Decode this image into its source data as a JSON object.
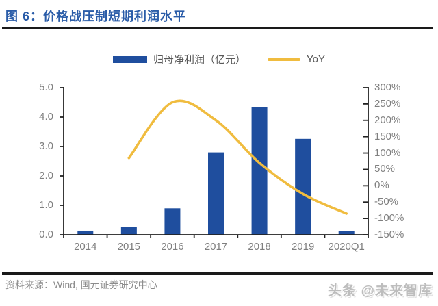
{
  "header": {
    "title": "图 6：价格战压制短期利润水平"
  },
  "legend": {
    "bar_label": "归母净利润（亿元）",
    "line_label": "YoY"
  },
  "chart_data": {
    "type": "bar+line",
    "title": "图 6：价格战压制短期利润水平",
    "categories": [
      "2014",
      "2015",
      "2016",
      "2017",
      "2018",
      "2019",
      "2020Q1"
    ],
    "series": [
      {
        "name": "归母净利润（亿元）",
        "type": "bar",
        "axis": "left",
        "values": [
          0.14,
          0.27,
          0.9,
          2.8,
          4.33,
          3.26,
          0.12
        ]
      },
      {
        "name": "YoY",
        "type": "line",
        "axis": "right",
        "values": [
          null,
          85,
          255,
          200,
          70,
          -25,
          -85
        ]
      }
    ],
    "left_axis": {
      "min": 0,
      "max": 5,
      "step": 1,
      "tick_labels": [
        "0.0",
        "1.0",
        "2.0",
        "3.0",
        "4.0",
        "5.0"
      ]
    },
    "right_axis": {
      "min": -150,
      "max": 300,
      "step": 50,
      "tick_labels": [
        "300%",
        "250%",
        "200%",
        "150%",
        "100%",
        "50%",
        "0%",
        "-50%",
        "-100%",
        "-150%"
      ]
    },
    "legend_position": "top",
    "grid": false
  },
  "footer": {
    "source": "资料来源：Wind, 国元证券研究中心",
    "watermark": "头条 @未来智库"
  },
  "colors": {
    "bar": "#1F4E9E",
    "line": "#F0BC3F",
    "title": "#2A5CA8",
    "axis_line": "#222222",
    "axis_text": "#7F7F7F",
    "legend_text": "#595959",
    "rule": "#1A1A1A",
    "source_text": "#8C8C8C",
    "watermark": "#BDBDBD"
  }
}
